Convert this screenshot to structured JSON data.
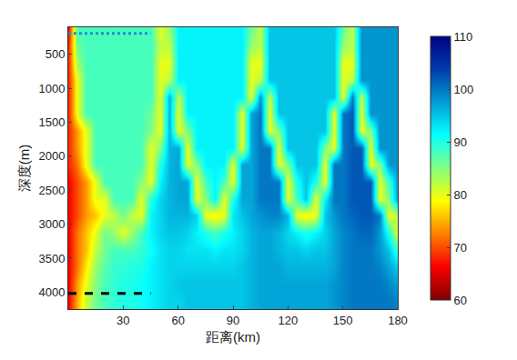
{
  "chart_data": {
    "type": "heatmap",
    "x_label": "距离(km)",
    "y_label": "深度(m)",
    "x": [
      0,
      5,
      10,
      15,
      20,
      25,
      30,
      35,
      40,
      45,
      50,
      55,
      60,
      65,
      70,
      75,
      80,
      85,
      90,
      95,
      100,
      105,
      110,
      115,
      120,
      125,
      130,
      135,
      140,
      145,
      150,
      155,
      160,
      165,
      170,
      175,
      180
    ],
    "y": [
      125,
      375,
      625,
      875,
      1125,
      1375,
      1625,
      1875,
      2125,
      2375,
      2625,
      2875,
      3125,
      3375,
      3625,
      3875,
      4125
    ],
    "cells": [
      [
        66,
        88,
        88,
        88,
        88,
        88,
        88,
        88,
        88,
        88,
        80,
        84,
        92,
        92,
        92,
        92,
        92,
        92,
        92,
        92,
        86,
        82,
        95,
        95,
        95,
        95,
        95,
        95,
        95,
        95,
        86,
        82,
        98,
        98,
        98,
        98,
        98
      ],
      [
        68,
        86,
        88,
        88,
        88,
        88,
        88,
        88,
        88,
        88,
        82,
        82,
        92,
        92,
        92,
        92,
        92,
        92,
        92,
        92,
        84,
        82,
        95,
        95,
        95,
        95,
        95,
        95,
        95,
        95,
        84,
        82,
        98,
        98,
        98,
        98,
        98
      ],
      [
        68,
        84,
        88,
        88,
        88,
        88,
        88,
        88,
        88,
        88,
        80,
        80,
        92,
        92,
        92,
        92,
        92,
        92,
        92,
        92,
        80,
        80,
        95,
        95,
        95,
        95,
        95,
        95,
        95,
        95,
        80,
        80,
        98,
        98,
        98,
        98,
        98
      ],
      [
        68,
        80,
        88,
        88,
        88,
        88,
        88,
        88,
        88,
        88,
        80,
        82,
        92,
        92,
        92,
        92,
        92,
        92,
        92,
        92,
        80,
        82,
        95,
        95,
        95,
        95,
        95,
        95,
        95,
        95,
        80,
        82,
        98,
        98,
        98,
        98,
        98
      ],
      [
        68,
        80,
        88,
        88,
        88,
        88,
        88,
        88,
        88,
        88,
        80,
        96,
        82,
        92,
        92,
        92,
        92,
        92,
        92,
        92,
        80,
        98,
        82,
        95,
        95,
        95,
        95,
        95,
        95,
        95,
        80,
        100,
        82,
        98,
        98,
        98,
        98
      ],
      [
        68,
        80,
        88,
        88,
        88,
        88,
        88,
        88,
        88,
        86,
        80,
        96,
        80,
        92,
        92,
        92,
        92,
        92,
        92,
        80,
        97,
        100,
        80,
        95,
        95,
        95,
        95,
        95,
        95,
        80,
        100,
        102,
        80,
        98,
        98,
        98,
        98
      ],
      [
        68,
        74,
        80,
        88,
        88,
        88,
        88,
        88,
        88,
        85,
        80,
        96,
        80,
        85,
        92,
        92,
        92,
        92,
        92,
        80,
        97,
        100,
        80,
        85,
        95,
        95,
        95,
        95,
        95,
        80,
        100,
        102,
        80,
        85,
        98,
        98,
        98
      ],
      [
        68,
        74,
        80,
        88,
        88,
        88,
        88,
        88,
        88,
        80,
        85,
        96,
        97,
        80,
        92,
        92,
        92,
        92,
        92,
        80,
        97,
        100,
        100,
        80,
        95,
        95,
        95,
        95,
        85,
        80,
        100,
        102,
        102,
        80,
        98,
        98,
        98
      ],
      [
        68,
        72,
        80,
        88,
        88,
        88,
        88,
        88,
        88,
        80,
        90,
        96,
        97,
        80,
        85,
        92,
        92,
        92,
        80,
        97,
        97,
        100,
        100,
        80,
        85,
        95,
        95,
        95,
        80,
        100,
        100,
        102,
        102,
        80,
        85,
        98,
        98
      ],
      [
        66,
        70,
        74,
        80,
        88,
        88,
        88,
        88,
        85,
        80,
        92,
        96,
        97,
        97,
        80,
        88,
        92,
        88,
        80,
        97,
        97,
        100,
        100,
        100,
        80,
        90,
        95,
        90,
        80,
        100,
        100,
        102,
        102,
        102,
        80,
        88,
        98
      ],
      [
        66,
        70,
        74,
        80,
        80,
        88,
        88,
        88,
        80,
        90,
        94,
        96,
        97,
        97,
        80,
        85,
        92,
        80,
        90,
        97,
        97,
        100,
        100,
        100,
        80,
        88,
        95,
        80,
        92,
        100,
        100,
        102,
        102,
        102,
        80,
        85,
        98
      ],
      [
        66,
        70,
        74,
        76,
        80,
        82,
        86,
        82,
        80,
        92,
        94,
        96,
        96,
        96,
        94,
        80,
        78,
        80,
        93,
        95,
        97,
        98,
        99,
        99,
        96,
        80,
        78,
        80,
        95,
        98,
        100,
        101,
        102,
        102,
        100,
        80,
        82
      ],
      [
        66,
        72,
        76,
        80,
        86,
        84,
        80,
        84,
        88,
        92,
        94,
        95,
        95,
        94,
        92,
        90,
        88,
        90,
        92,
        94,
        96,
        97,
        97,
        96,
        94,
        92,
        90,
        92,
        94,
        97,
        99,
        100,
        101,
        101,
        98,
        90,
        80
      ],
      [
        66,
        72,
        76,
        82,
        86,
        88,
        88,
        88,
        89,
        91,
        93,
        94,
        94,
        93,
        93,
        93,
        92,
        93,
        93,
        94,
        96,
        97,
        97,
        96,
        95,
        95,
        94,
        95,
        95,
        97,
        99,
        100,
        100,
        100,
        98,
        95,
        88
      ],
      [
        66,
        72,
        78,
        84,
        87,
        89,
        89,
        90,
        90,
        92,
        93,
        94,
        94,
        94,
        94,
        94,
        94,
        94,
        94,
        95,
        96,
        97,
        97,
        97,
        96,
        96,
        96,
        96,
        96,
        97,
        99,
        100,
        100,
        100,
        99,
        97,
        94
      ],
      [
        66,
        74,
        80,
        85,
        88,
        89,
        90,
        90,
        91,
        92,
        93,
        94,
        95,
        95,
        95,
        95,
        95,
        95,
        95,
        95,
        96,
        97,
        97,
        97,
        97,
        97,
        97,
        97,
        97,
        98,
        99,
        100,
        100,
        100,
        100,
        99,
        97
      ],
      [
        66,
        75,
        82,
        86,
        88,
        89,
        90,
        90,
        91,
        92,
        93,
        94,
        94,
        95,
        95,
        95,
        95,
        95,
        95,
        95,
        96,
        97,
        97,
        97,
        97,
        97,
        97,
        97,
        97,
        98,
        99,
        100,
        100,
        100,
        100,
        100,
        99
      ]
    ],
    "xlim": [
      0,
      180
    ],
    "xticks": [
      30,
      60,
      90,
      120,
      150,
      180
    ],
    "ylim": [
      4250,
      100
    ],
    "yticks": [
      500,
      1000,
      1500,
      2000,
      2500,
      3000,
      3500,
      4000
    ],
    "colorbar_lim": [
      60,
      110
    ],
    "colorbar_ticks": [
      60,
      70,
      80,
      90,
      100,
      110
    ],
    "reference_lines": [
      {
        "y": 190,
        "x": [
          0,
          45
        ],
        "color": "#2a8cc4",
        "line_style": "dot"
      },
      {
        "y": 4020,
        "x": [
          0,
          45
        ],
        "color": "#000000",
        "line_style": "dash"
      }
    ]
  }
}
